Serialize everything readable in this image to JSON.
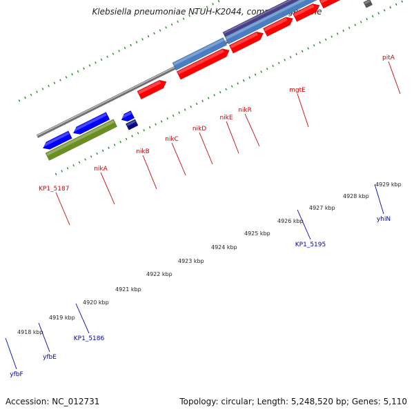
{
  "title": "Klebsiella pneumoniae NTUH-K2044, complete genome",
  "footer": {
    "accession": "Accession: NC_012731",
    "topology": "Topology: circular; Length: 5,248,520 bp; Genes: 5,110"
  },
  "colors": {
    "forward_cds": "#ff0000",
    "reverse_cds": "#0000ff",
    "forward_label": "#cc0000",
    "reverse_label": "#0000aa",
    "tick": "#1a8a1a",
    "backbone": "#888888",
    "steelblue": "#4a7ec0",
    "purple": "#4b3f8a",
    "orange": "#ff9900",
    "gray": "#c8c8c8",
    "darkgray": "#555555",
    "olive": "#6b8e23",
    "navy": "#0a0a80"
  },
  "coordinates": {
    "kbp_labels": [
      "4918 kbp",
      "4919 kbp",
      "4920 kbp",
      "4921 kbp",
      "4922 kbp",
      "4923 kbp",
      "4924 kbp",
      "4925 kbp",
      "4926 kbp",
      "4927 kbp",
      "4928 kbp",
      "4929 kbp"
    ]
  },
  "genes": [
    {
      "name": "KP1_5187",
      "strand": "forward"
    },
    {
      "name": "nikA",
      "strand": "forward"
    },
    {
      "name": "nikB",
      "strand": "forward"
    },
    {
      "name": "nikC",
      "strand": "forward"
    },
    {
      "name": "nikD",
      "strand": "forward"
    },
    {
      "name": "nikE",
      "strand": "forward"
    },
    {
      "name": "nikR",
      "strand": "forward"
    },
    {
      "name": "mgtE",
      "strand": "forward"
    },
    {
      "name": "pitA",
      "strand": "forward"
    },
    {
      "name": "KP1_5186",
      "strand": "reverse"
    },
    {
      "name": "KP1_5195",
      "strand": "reverse"
    },
    {
      "name": "yhiN",
      "strand": "reverse"
    },
    {
      "name": "yfbE",
      "strand": "reverse"
    },
    {
      "name": "yfbF",
      "strand": "reverse"
    }
  ]
}
